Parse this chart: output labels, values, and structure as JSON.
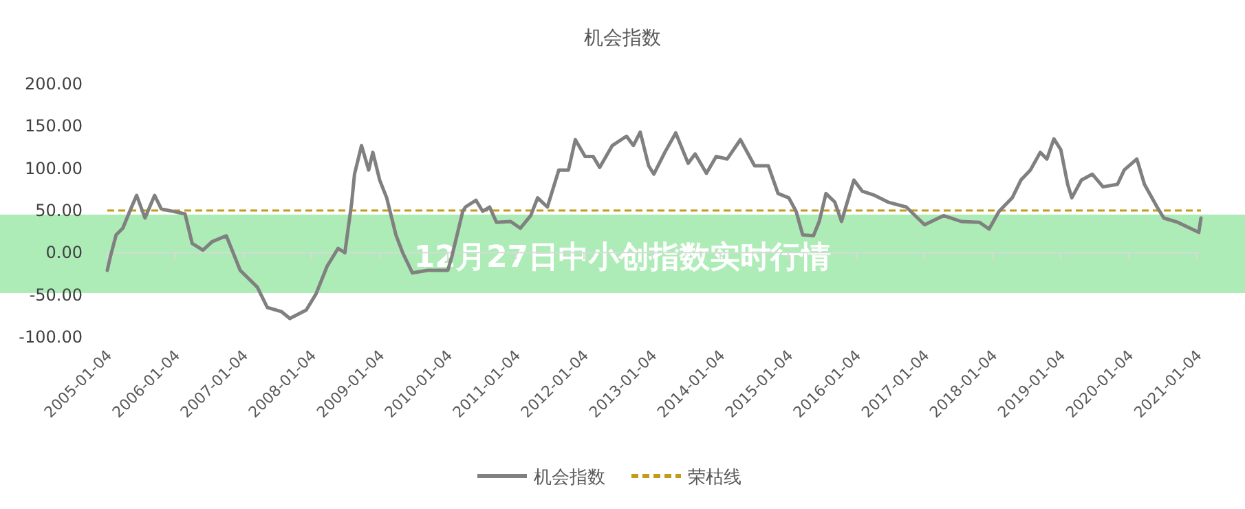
{
  "chart_data": {
    "type": "line",
    "title": "机会指数",
    "annotations": [
      "12月27日中小创指数实时行情"
    ],
    "series": [
      {
        "name": "机会指数",
        "color": "#808080",
        "x": [
          "2005-01-04",
          "2005-01-20",
          "2005-02-20",
          "2005-03-28",
          "2005-05-04",
          "2005-06-10",
          "2005-07-25",
          "2005-09-15",
          "2005-10-20",
          "2006-02-25",
          "2006-04-04",
          "2006-06-01",
          "2006-07-20",
          "2006-10-04",
          "2006-12-18",
          "2007-03-20",
          "2007-05-12",
          "2007-07-28",
          "2007-09-10",
          "2007-12-07",
          "2008-01-28",
          "2008-03-28",
          "2008-05-25",
          "2008-07-01",
          "2008-08-07",
          "2008-08-22",
          "2008-09-28",
          "2008-11-06",
          "2008-11-28",
          "2009-01-04",
          "2009-02-10",
          "2009-04-01",
          "2009-05-07",
          "2009-06-28",
          "2009-09-18",
          "2010-01-04",
          "2010-01-25",
          "2010-03-25",
          "2010-04-08",
          "2010-06-04",
          "2010-07-10",
          "2010-08-16",
          "2010-09-22",
          "2010-12-07",
          "2011-01-28",
          "2011-03-25",
          "2011-05-01",
          "2011-06-22",
          "2011-08-22",
          "2011-10-13",
          "2011-11-19",
          "2012-01-10",
          "2012-02-22",
          "2012-03-28",
          "2012-06-04",
          "2012-08-19",
          "2012-09-25",
          "2012-11-01",
          "2012-12-16",
          "2013-01-13",
          "2013-03-13",
          "2013-05-10",
          "2013-07-16",
          "2013-08-22",
          "2013-10-22",
          "2013-12-13",
          "2014-02-10",
          "2014-04-22",
          "2014-07-07",
          "2014-09-19",
          "2014-11-10",
          "2015-01-07",
          "2015-02-15",
          "2015-03-22",
          "2015-05-19",
          "2015-06-19",
          "2015-07-25",
          "2015-09-10",
          "2015-10-16",
          "2015-12-22",
          "2016-02-04",
          "2016-04-10",
          "2016-06-22",
          "2016-09-28",
          "2017-01-04",
          "2017-04-16",
          "2017-07-19",
          "2017-10-25",
          "2017-12-16",
          "2018-02-07",
          "2018-04-19",
          "2018-06-04",
          "2018-07-25",
          "2018-09-16",
          "2018-10-22",
          "2018-11-28",
          "2019-01-04",
          "2019-02-10",
          "2019-03-04",
          "2019-04-25",
          "2019-06-22",
          "2019-08-19",
          "2019-11-04",
          "2019-12-10",
          "2020-02-16",
          "2020-03-28",
          "2020-06-04",
          "2020-07-10",
          "2020-09-22",
          "2021-01-13",
          "2021-01-25"
        ],
        "values": [
          -21,
          -5,
          21,
          29,
          49,
          68,
          41,
          68,
          52,
          46,
          11,
          3,
          13,
          20,
          -21,
          -41,
          -65,
          -70,
          -78,
          -68,
          -49,
          -16,
          5,
          0,
          60,
          93,
          127,
          98,
          119,
          86,
          65,
          21,
          0,
          -24,
          -21,
          -21,
          -5,
          49,
          54,
          62,
          49,
          54,
          36,
          37,
          29,
          44,
          65,
          54,
          98,
          98,
          134,
          114,
          114,
          101,
          127,
          138,
          127,
          143,
          103,
          93,
          119,
          142,
          106,
          117,
          94,
          114,
          111,
          134,
          103,
          103,
          70,
          65,
          49,
          21,
          20,
          37,
          70,
          60,
          37,
          86,
          73,
          68,
          60,
          54,
          33,
          44,
          37,
          36,
          28,
          49,
          65,
          86,
          98,
          119,
          111,
          135,
          122,
          81,
          65,
          86,
          93,
          78,
          81,
          98,
          111,
          81,
          54,
          41,
          36,
          24,
          41
        ]
      }
    ],
    "ref_lines": [
      {
        "axis": "y",
        "value": 50,
        "label": "荣枯线",
        "color": "#c49a1a",
        "line_style": "dashed"
      }
    ],
    "xlim": [
      "2005-01-04",
      "2021-01-25"
    ],
    "xticks": [
      "2005-01-04",
      "2006-01-04",
      "2007-01-04",
      "2008-01-04",
      "2009-01-04",
      "2010-01-04",
      "2011-01-04",
      "2012-01-04",
      "2013-01-04",
      "2014-01-04",
      "2015-01-04",
      "2016-01-04",
      "2017-01-04",
      "2018-01-04",
      "2019-01-04",
      "2020-01-04",
      "2021-01-04"
    ],
    "ylim": [
      -100,
      200
    ],
    "yticks": [
      {
        "value": -100,
        "label": "-100.00"
      },
      {
        "value": -50,
        "label": "-50.00"
      },
      {
        "value": 0,
        "label": "0.00"
      },
      {
        "value": 50,
        "label": "50.00"
      },
      {
        "value": 100,
        "label": "100.00"
      },
      {
        "value": 150,
        "label": "150.00"
      },
      {
        "value": 200,
        "label": "200.00"
      }
    ],
    "legend": "bottom",
    "marker": "none",
    "line_style": "solid"
  }
}
